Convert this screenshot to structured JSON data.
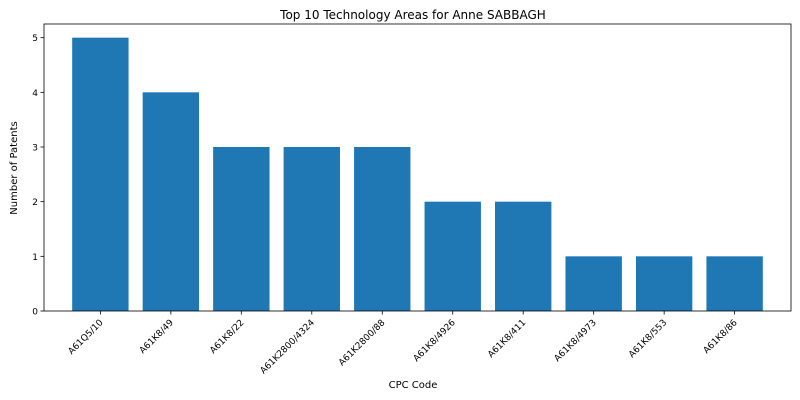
{
  "chart_data": {
    "type": "bar",
    "title": "Top 10 Technology Areas for Anne SABBAGH",
    "xlabel": "CPC Code",
    "ylabel": "Number of Patents",
    "categories": [
      "A61Q5/10",
      "A61K8/49",
      "A61K8/22",
      "A61K2800/4324",
      "A61K2800/88",
      "A61K8/4926",
      "A61K8/411",
      "A61K8/4973",
      "A61K8/553",
      "A61K8/86"
    ],
    "values": [
      5,
      4,
      3,
      3,
      3,
      2,
      2,
      1,
      1,
      1
    ],
    "ylim": [
      0,
      5.25
    ],
    "yticks": [
      0,
      1,
      2,
      3,
      4,
      5
    ],
    "grid": false,
    "bar_color": "#1f77b4"
  }
}
